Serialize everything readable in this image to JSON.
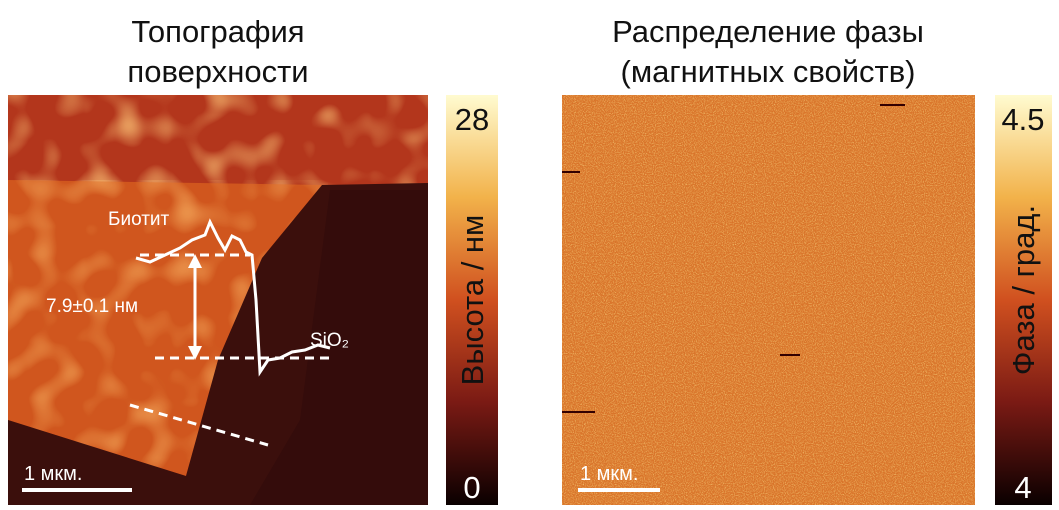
{
  "panels": [
    {
      "title": [
        "Топография",
        "поверхности"
      ],
      "scale_bar": "1 мкм.",
      "annotations": {
        "material_top": "Биотит",
        "step_height": "7.9±0.1 нм",
        "material_bottom": "SiO₂"
      },
      "colorbar": {
        "max": "28",
        "min": "0",
        "label": "Высота / нм"
      }
    },
    {
      "title": [
        "Распределение фазы",
        "(магнитных свойств)"
      ],
      "scale_bar": "1 мкм.",
      "colorbar": {
        "max": "4.5",
        "min": "4",
        "label": "Фаза / град."
      }
    }
  ]
}
